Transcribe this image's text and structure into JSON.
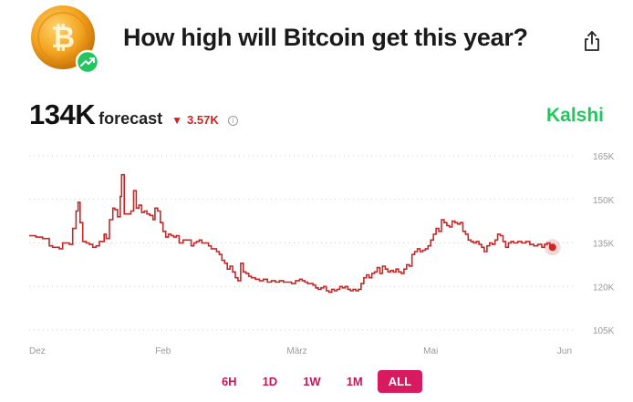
{
  "header": {
    "title": "How high will Bitcoin get this year?",
    "coin_icon": "bitcoin-icon",
    "badge_icon": "trending-up-icon",
    "share_icon": "share-icon"
  },
  "forecast": {
    "value": "134K",
    "label": "forecast",
    "change": "3.57K",
    "change_direction": "down",
    "change_color": "#d92020",
    "info_icon": "info-icon"
  },
  "brand": {
    "name": "Kalshi",
    "color": "#22c55e"
  },
  "ranges": {
    "items": [
      "6H",
      "1D",
      "1W",
      "1M",
      "ALL"
    ],
    "active": "ALL",
    "accent": "#d81b60"
  },
  "chart_data": {
    "type": "line",
    "y_ticks": [
      "165K",
      "150K",
      "135K",
      "120K",
      "105K"
    ],
    "ylim": [
      105,
      165
    ],
    "x_ticks": [
      "Dez",
      "Feb",
      "März",
      "Mai",
      "Jun"
    ],
    "x_tick_positions": [
      0,
      2,
      4,
      6,
      8
    ],
    "xlim": [
      0,
      8.15
    ],
    "grid": true,
    "line_color": "#c62828",
    "series": [
      {
        "values": [
          [
            0,
            137.5
          ],
          [
            0.1,
            137
          ],
          [
            0.2,
            136.5
          ],
          [
            0.3,
            134
          ],
          [
            0.35,
            133.5
          ],
          [
            0.45,
            133
          ],
          [
            0.5,
            135
          ],
          [
            0.6,
            134.5
          ],
          [
            0.65,
            140
          ],
          [
            0.7,
            146
          ],
          [
            0.73,
            149
          ],
          [
            0.76,
            142
          ],
          [
            0.8,
            135.5
          ],
          [
            0.85,
            135
          ],
          [
            0.9,
            134.5
          ],
          [
            0.95,
            133.5
          ],
          [
            1.0,
            134
          ],
          [
            1.05,
            135.5
          ],
          [
            1.12,
            138
          ],
          [
            1.15,
            136.5
          ],
          [
            1.2,
            143
          ],
          [
            1.25,
            147
          ],
          [
            1.28,
            146.5
          ],
          [
            1.32,
            144
          ],
          [
            1.36,
            151
          ],
          [
            1.38,
            158.5
          ],
          [
            1.42,
            145
          ],
          [
            1.46,
            145
          ],
          [
            1.52,
            146
          ],
          [
            1.56,
            153
          ],
          [
            1.6,
            147
          ],
          [
            1.64,
            148
          ],
          [
            1.68,
            145.5
          ],
          [
            1.72,
            146
          ],
          [
            1.76,
            145
          ],
          [
            1.8,
            144.5
          ],
          [
            1.85,
            143
          ],
          [
            1.88,
            147
          ],
          [
            1.92,
            146
          ],
          [
            1.96,
            142
          ],
          [
            2.0,
            139
          ],
          [
            2.04,
            137
          ],
          [
            2.08,
            138
          ],
          [
            2.12,
            137.5
          ],
          [
            2.16,
            137
          ],
          [
            2.2,
            137.5
          ],
          [
            2.24,
            135
          ],
          [
            2.3,
            136
          ],
          [
            2.36,
            136
          ],
          [
            2.42,
            134
          ],
          [
            2.46,
            135
          ],
          [
            2.5,
            135.5
          ],
          [
            2.54,
            136
          ],
          [
            2.58,
            135
          ],
          [
            2.62,
            135
          ],
          [
            2.68,
            134
          ],
          [
            2.72,
            133
          ],
          [
            2.76,
            133
          ],
          [
            2.8,
            132
          ],
          [
            2.84,
            131
          ],
          [
            2.88,
            129
          ],
          [
            2.92,
            128
          ],
          [
            2.96,
            126
          ],
          [
            3.0,
            127
          ],
          [
            3.04,
            125
          ],
          [
            3.08,
            123
          ],
          [
            3.12,
            122
          ],
          [
            3.16,
            128
          ],
          [
            3.2,
            125
          ],
          [
            3.24,
            124.5
          ],
          [
            3.28,
            123.5
          ],
          [
            3.32,
            123
          ],
          [
            3.38,
            122.5
          ],
          [
            3.44,
            122
          ],
          [
            3.5,
            122.5
          ],
          [
            3.56,
            121.5
          ],
          [
            3.62,
            122
          ],
          [
            3.68,
            121.5
          ],
          [
            3.74,
            122
          ],
          [
            3.8,
            121.5
          ],
          [
            3.86,
            121.5
          ],
          [
            3.92,
            121
          ],
          [
            3.98,
            122
          ],
          [
            4.04,
            122.5
          ],
          [
            4.08,
            122
          ],
          [
            4.12,
            121.5
          ],
          [
            4.16,
            121
          ],
          [
            4.2,
            121
          ],
          [
            4.24,
            120.5
          ],
          [
            4.28,
            119.5
          ],
          [
            4.32,
            119
          ],
          [
            4.36,
            119.5
          ],
          [
            4.4,
            120
          ],
          [
            4.44,
            118.5
          ],
          [
            4.48,
            118
          ],
          [
            4.52,
            119
          ],
          [
            4.56,
            118.5
          ],
          [
            4.6,
            119
          ],
          [
            4.64,
            120
          ],
          [
            4.68,
            119.5
          ],
          [
            4.72,
            120
          ],
          [
            4.76,
            119
          ],
          [
            4.8,
            118.5
          ],
          [
            4.84,
            119
          ],
          [
            4.88,
            118.5
          ],
          [
            4.92,
            119
          ],
          [
            4.96,
            121
          ],
          [
            5.0,
            123
          ],
          [
            5.04,
            124
          ],
          [
            5.08,
            123
          ],
          [
            5.12,
            124.5
          ],
          [
            5.16,
            125
          ],
          [
            5.2,
            126.5
          ],
          [
            5.24,
            124.5
          ],
          [
            5.28,
            127
          ],
          [
            5.32,
            126
          ],
          [
            5.36,
            125
          ],
          [
            5.4,
            125.5
          ],
          [
            5.44,
            125
          ],
          [
            5.48,
            126
          ],
          [
            5.52,
            125
          ],
          [
            5.56,
            124.5
          ],
          [
            5.6,
            126
          ],
          [
            5.64,
            127.5
          ],
          [
            5.68,
            127
          ],
          [
            5.72,
            131
          ],
          [
            5.76,
            132
          ],
          [
            5.8,
            133
          ],
          [
            5.84,
            132
          ],
          [
            5.88,
            132.5
          ],
          [
            5.92,
            133
          ],
          [
            5.96,
            134
          ],
          [
            6.0,
            136
          ],
          [
            6.04,
            138
          ],
          [
            6.08,
            140
          ],
          [
            6.12,
            139
          ],
          [
            6.16,
            143
          ],
          [
            6.2,
            142
          ],
          [
            6.24,
            141
          ],
          [
            6.28,
            140.5
          ],
          [
            6.32,
            142.5
          ],
          [
            6.36,
            142
          ],
          [
            6.4,
            141.5
          ],
          [
            6.44,
            142
          ],
          [
            6.48,
            139
          ],
          [
            6.52,
            138
          ],
          [
            6.56,
            136
          ],
          [
            6.6,
            135.5
          ],
          [
            6.64,
            135
          ],
          [
            6.68,
            135.5
          ],
          [
            6.72,
            134.5
          ],
          [
            6.76,
            133.5
          ],
          [
            6.8,
            132
          ],
          [
            6.84,
            134
          ],
          [
            6.88,
            135
          ],
          [
            6.92,
            134.5
          ],
          [
            6.96,
            136
          ],
          [
            7.0,
            138
          ],
          [
            7.04,
            137.5
          ],
          [
            7.08,
            135.5
          ],
          [
            7.12,
            133.5
          ],
          [
            7.16,
            135
          ],
          [
            7.2,
            135.5
          ],
          [
            7.24,
            135
          ],
          [
            7.3,
            135.5
          ],
          [
            7.36,
            135
          ],
          [
            7.42,
            135.5
          ],
          [
            7.48,
            134.5
          ],
          [
            7.54,
            134
          ],
          [
            7.6,
            134.5
          ],
          [
            7.66,
            133.5
          ],
          [
            7.7,
            134.5
          ],
          [
            7.74,
            135
          ],
          [
            7.78,
            134
          ],
          [
            7.82,
            133.5
          ]
        ]
      }
    ]
  }
}
